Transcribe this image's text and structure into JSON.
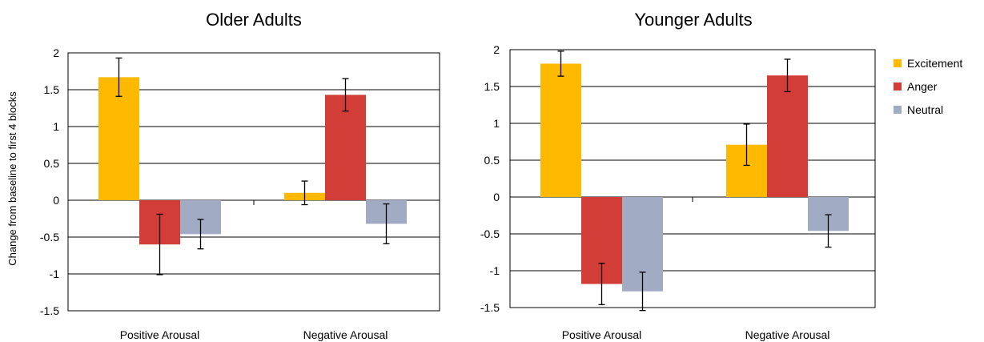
{
  "chart_data": {
    "type": "bar",
    "ylabel": "Change from baseline to first 4 blocks",
    "ylim": [
      -1.5,
      2
    ],
    "yticks": [
      2,
      1.5,
      1,
      0.5,
      0,
      -0.5,
      -1,
      -1.5
    ],
    "ytick_labels": [
      "2",
      "1.5",
      "1",
      "0.5",
      "0",
      "-0.5",
      "-1",
      "-1.5"
    ],
    "categories": [
      "Positive Arousal",
      "Negative Arousal"
    ],
    "legend": {
      "position": "right",
      "items": [
        {
          "name": "Excitement",
          "color": "#FFB900"
        },
        {
          "name": "Anger",
          "color": "#D23D37"
        },
        {
          "name": "Neutral",
          "color": "#A1ABC4"
        }
      ]
    },
    "grid": true,
    "panels": [
      {
        "title": "Older Adults",
        "series": [
          {
            "name": "Excitement",
            "values": [
              1.67,
              0.1
            ],
            "errors": [
              0.26,
              0.16
            ]
          },
          {
            "name": "Anger",
            "values": [
              -0.6,
              1.43
            ],
            "errors": [
              0.41,
              0.22
            ]
          },
          {
            "name": "Neutral",
            "values": [
              -0.46,
              -0.32
            ],
            "errors": [
              0.2,
              0.27
            ]
          }
        ]
      },
      {
        "title": "Younger Adults",
        "series": [
          {
            "name": "Excitement",
            "values": [
              1.81,
              0.71
            ],
            "errors": [
              0.17,
              0.28
            ]
          },
          {
            "name": "Anger",
            "values": [
              -1.18,
              1.65
            ],
            "errors": [
              0.28,
              0.22
            ]
          },
          {
            "name": "Neutral",
            "values": [
              -1.28,
              -0.46
            ],
            "errors": [
              0.26,
              0.22
            ]
          }
        ]
      }
    ]
  }
}
